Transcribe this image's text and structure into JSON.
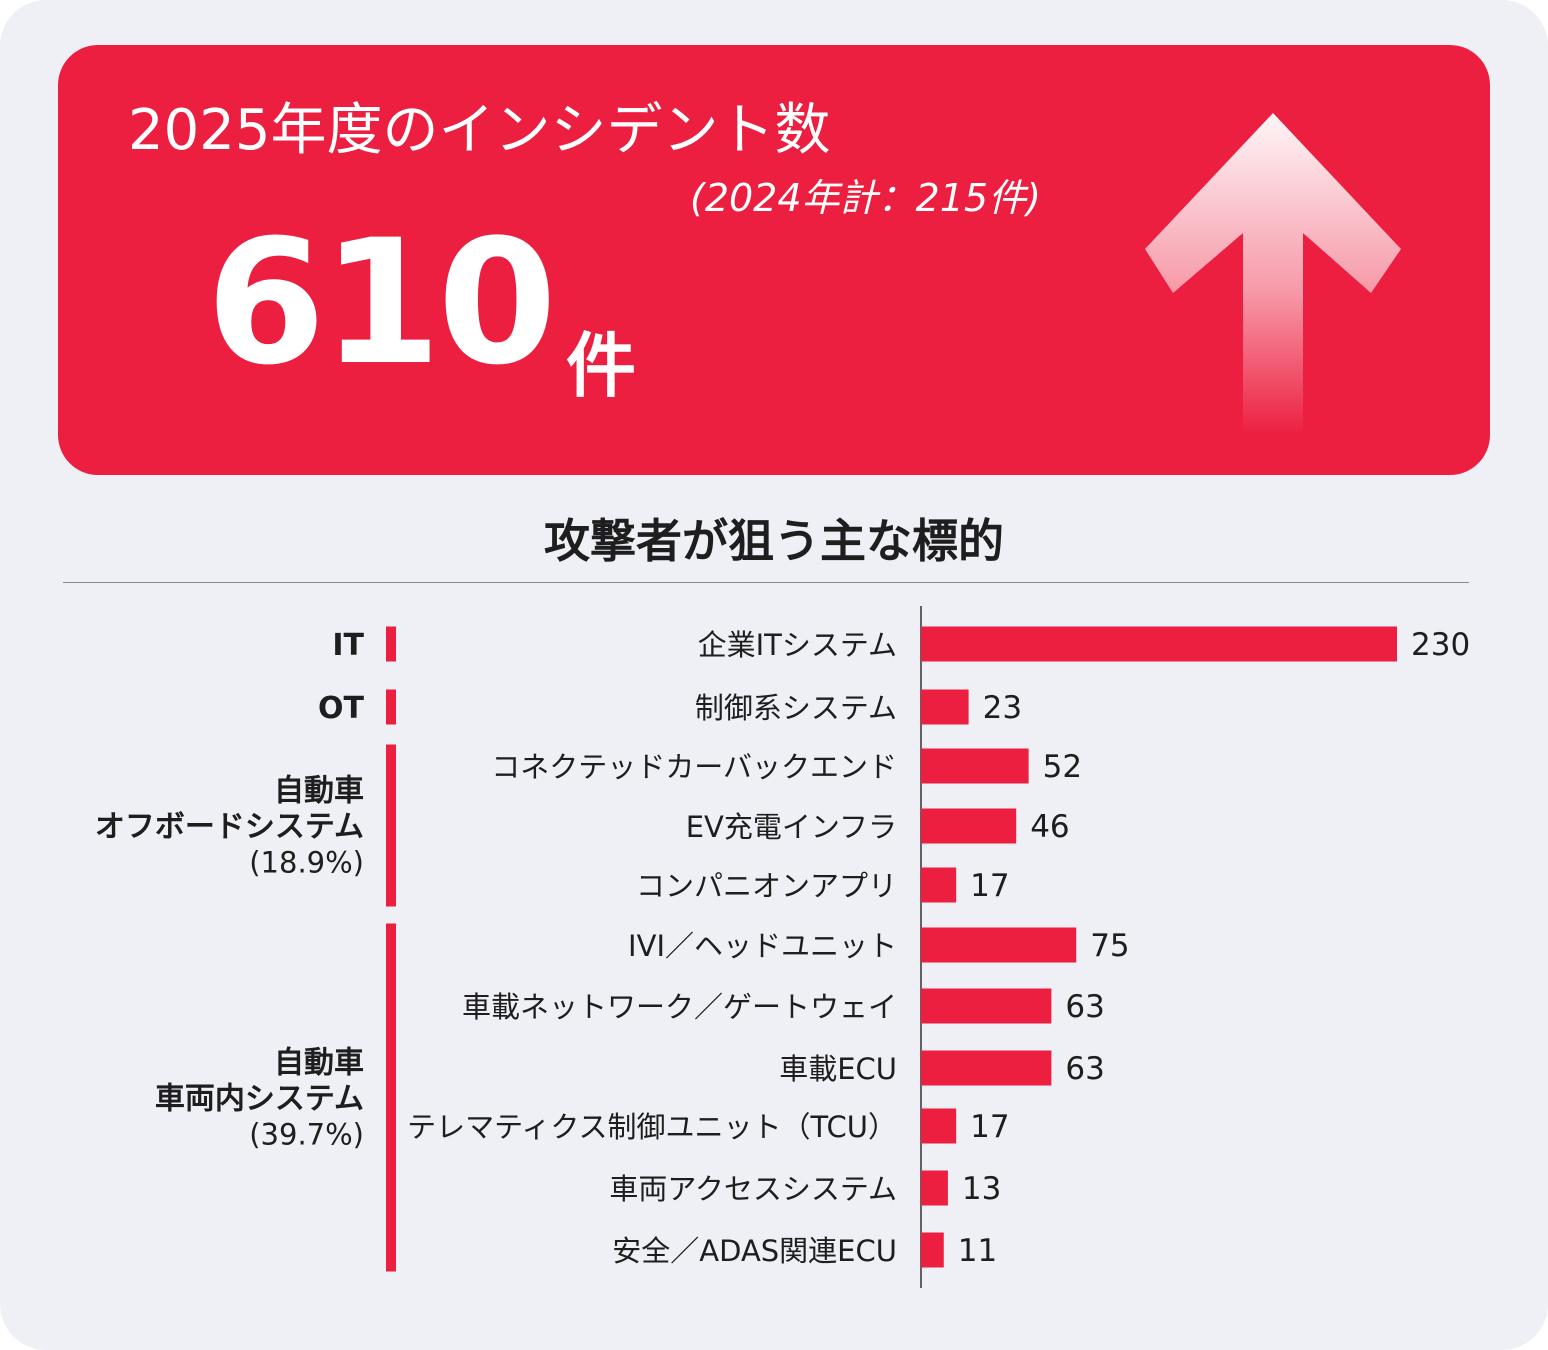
{
  "banner": {
    "title": "2025年度のインシデント数",
    "previous": "(2024年計：215件)",
    "count": "610",
    "unit": "件"
  },
  "colors": {
    "accent": "#ec1f40",
    "background": "#eef0f5",
    "text": "#1e1e1e"
  },
  "icons": {
    "banner_icon": "up-arrow-icon"
  },
  "chart_data": {
    "type": "bar",
    "orientation": "horizontal",
    "title": "攻撃者が狙う主な標的",
    "categories": [
      "企業ITシステム",
      "制御系システム",
      "コネクテッドカーバックエンド",
      "EV充電インフラ",
      "コンパニオンアプリ",
      "IVI／ヘッドユニット",
      "車載ネットワーク／ゲートウェイ",
      "車載ECU",
      "テレマティクス制御ユニット（TCU）",
      "車両アクセスシステム",
      "安全／ADAS関連ECU"
    ],
    "values": [
      230,
      23,
      52,
      46,
      17,
      75,
      63,
      63,
      17,
      13,
      11
    ],
    "xlim": [
      0,
      230
    ],
    "groups": [
      {
        "lines": [
          "IT"
        ],
        "start": 0,
        "end": 0
      },
      {
        "lines": [
          "OT"
        ],
        "start": 1,
        "end": 1
      },
      {
        "lines": [
          "自動車",
          "オフボードシステム",
          "(18.9%)"
        ],
        "start": 2,
        "end": 4
      },
      {
        "lines": [
          "自動車",
          "車両内システム",
          "(39.7%)"
        ],
        "start": 5,
        "end": 10
      }
    ]
  }
}
